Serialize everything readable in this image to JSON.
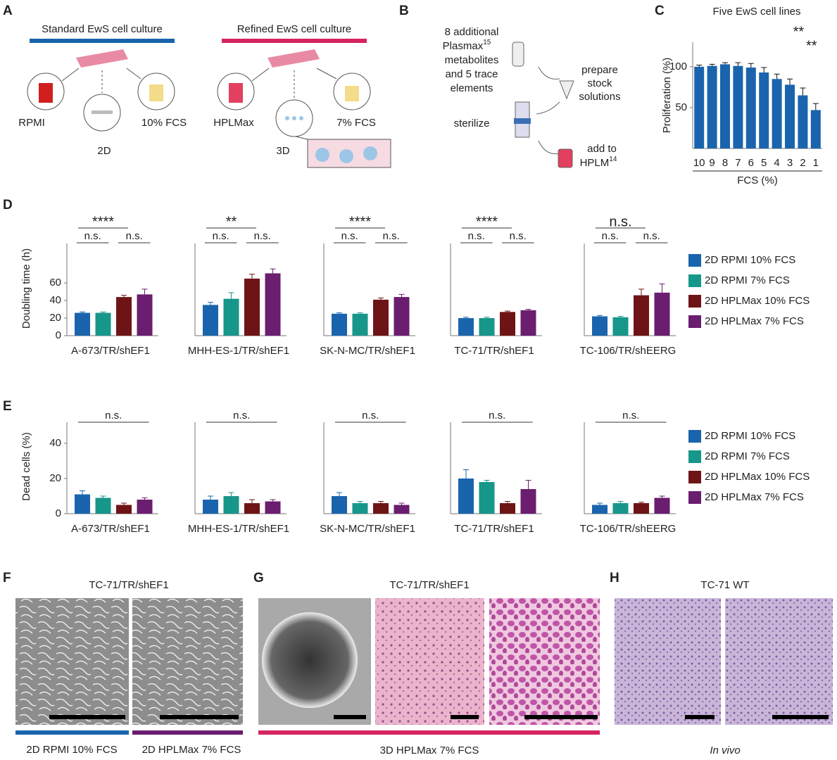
{
  "figure": {
    "panel_a": {
      "label": "A",
      "standard": "Standard EwS cell culture",
      "refined": "Refined EwS cell culture",
      "rpmi": "RPMI",
      "fcs10": "10% FCS",
      "d2": "2D",
      "hplmax": "HPLMax",
      "fcs7": "7% FCS",
      "d3": "3D"
    },
    "panel_b": {
      "label": "B",
      "metabolites": [
        "8 additional",
        "Plasmax",
        "metabolites",
        "and 5 trace",
        "elements"
      ],
      "metabolites_ref": "15",
      "prepare": [
        "prepare",
        "stock",
        "solutions"
      ],
      "sterilize": "sterilize",
      "add": [
        "add to",
        "HPLM"
      ],
      "add_ref": "14"
    },
    "panel_f": {
      "label": "F",
      "title": "TC-71/TR/shEF1",
      "left": "2D RPMI 10% FCS",
      "right": "2D HPLMax 7% FCS"
    },
    "panel_g": {
      "label": "G",
      "title": "TC-71/TR/shEF1",
      "caption": "3D HPLMax 7% FCS"
    },
    "panel_h": {
      "label": "H",
      "title": "TC-71 WT",
      "caption": "In vivo"
    }
  },
  "chart_data": [
    {
      "panel_label": "C",
      "type": "bar",
      "title": "Five EwS cell lines",
      "y_label": "Proliferation (%)",
      "x_label": "FCS (%)",
      "categories": [
        "10",
        "9",
        "8",
        "7",
        "6",
        "5",
        "4",
        "3",
        "2",
        "1"
      ],
      "values": [
        100,
        101,
        103,
        101,
        99,
        93,
        85,
        78,
        65,
        47
      ],
      "errors": [
        2,
        2,
        2,
        4,
        5,
        6,
        6,
        7,
        9,
        8
      ],
      "color": "#1a64ad",
      "ylim": [
        0,
        130
      ],
      "yticks": [
        50,
        100
      ],
      "significance": [
        null,
        null,
        null,
        null,
        null,
        null,
        null,
        null,
        "**",
        "**"
      ]
    },
    {
      "panel_label": "D",
      "type": "grouped_bar",
      "y_label": "Doubling time (h)",
      "categories": [
        "A-673/TR/shEF1",
        "MHH-ES-1/TR/shEF1",
        "SK-N-MC/TR/shEF1",
        "TC-71/TR/shEF1",
        "TC-106/TR/shEERG"
      ],
      "ylim": [
        0,
        105
      ],
      "yticks": [
        0,
        20,
        40,
        60
      ],
      "series": [
        {
          "name": "2D RPMI 10% FCS",
          "color": "#1a64ad",
          "values": [
            26,
            35,
            25,
            20,
            22
          ],
          "errors": [
            1,
            3,
            1,
            1,
            1
          ]
        },
        {
          "name": "2D RPMI 7% FCS",
          "color": "#17968a",
          "values": [
            26,
            42,
            25,
            20,
            21
          ],
          "errors": [
            1,
            7,
            1,
            1,
            1
          ]
        },
        {
          "name": "2D HPLMax 10% FCS",
          "color": "#6e1416",
          "values": [
            44,
            65,
            41,
            27,
            46
          ],
          "errors": [
            2,
            5,
            2,
            1,
            7
          ]
        },
        {
          "name": "2D HPLMax 7% FCS",
          "color": "#6b1d6f",
          "values": [
            47,
            71,
            44,
            29,
            49
          ],
          "errors": [
            6,
            5,
            3,
            1,
            10
          ]
        }
      ],
      "significance": [
        {
          "top": "****",
          "left": "n.s.",
          "right": "n.s."
        },
        {
          "top": "**",
          "left": "n.s.",
          "right": "n.s."
        },
        {
          "top": "****",
          "left": "n.s.",
          "right": "n.s."
        },
        {
          "top": "****",
          "left": "n.s.",
          "right": "n.s."
        },
        {
          "top": "n.s.",
          "left": "n.s.",
          "right": "n.s."
        }
      ]
    },
    {
      "panel_label": "E",
      "type": "grouped_bar",
      "y_label": "Dead cells (%)",
      "categories": [
        "A-673/TR/shEF1",
        "MHH-ES-1/TR/shEF1",
        "SK-N-MC/TR/shEF1",
        "TC-71/TR/shEF1",
        "TC-106/TR/shEERG"
      ],
      "ylim": [
        0,
        52
      ],
      "yticks": [
        0,
        20,
        40
      ],
      "series": [
        {
          "name": "2D RPMI 10% FCS",
          "color": "#1a64ad",
          "values": [
            11,
            8,
            10,
            20,
            5
          ],
          "errors": [
            2,
            2,
            2,
            5,
            1
          ]
        },
        {
          "name": "2D RPMI 7% FCS",
          "color": "#17968a",
          "values": [
            9,
            10,
            6,
            18,
            6
          ],
          "errors": [
            1,
            2,
            1,
            1,
            1
          ]
        },
        {
          "name": "2D HPLMax 10% FCS",
          "color": "#6e1416",
          "values": [
            5,
            6,
            6,
            6,
            6
          ],
          "errors": [
            1,
            2,
            1,
            1,
            0.5
          ]
        },
        {
          "name": "2D HPLMax 7% FCS",
          "color": "#6b1d6f",
          "values": [
            8,
            7,
            5,
            14,
            9
          ],
          "errors": [
            1,
            1,
            1,
            5,
            1
          ]
        }
      ],
      "significance": [
        "n.s.",
        "n.s.",
        "n.s.",
        "n.s.",
        "n.s."
      ]
    }
  ]
}
